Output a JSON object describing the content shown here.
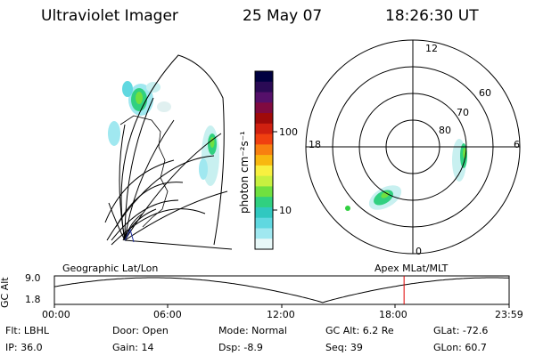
{
  "header": {
    "instrument": "Ultraviolet Imager",
    "date": "25 May 07",
    "time": "18:26:30 UT"
  },
  "colorbar": {
    "unit_label": "photon cm⁻²s⁻¹",
    "ticks": [
      "100",
      "10"
    ],
    "colors": [
      "#000040",
      "#2a0a55",
      "#55106a",
      "#800a40",
      "#a00a0a",
      "#d02010",
      "#f04010",
      "#f88010",
      "#f8b810",
      "#f8f040",
      "#c8f040",
      "#70e040",
      "#30d080",
      "#30c8c0",
      "#60d8e0",
      "#a0e8f0",
      "#e8f8f8"
    ]
  },
  "polar_plot": {
    "labels": [
      "12",
      "18",
      "6",
      "0"
    ],
    "latitude_labels": [
      "60",
      "70",
      "80"
    ]
  },
  "timeline": {
    "ylabel": "GC Alt",
    "y_ticks": [
      "9.0",
      "1.8"
    ],
    "left_caption": "Geographic Lat/Lon",
    "right_caption": "Apex MLat/MLT",
    "x_ticks": [
      "00:00",
      "06:00",
      "12:00",
      "18:00",
      "23:59"
    ],
    "marker_color": "#e00000"
  },
  "info": {
    "flt": "Flt: LBHL",
    "ip": "IP: 36.0",
    "door": "Door: Open",
    "gain": "Gain: 14",
    "mode": "Mode: Normal",
    "dsp": "Dsp:    -8.9",
    "gc_alt": "GC Alt: 6.2 Re",
    "seq": "Seq: 39",
    "glat": "GLat:  -72.6",
    "glon": "GLon:   60.7"
  }
}
